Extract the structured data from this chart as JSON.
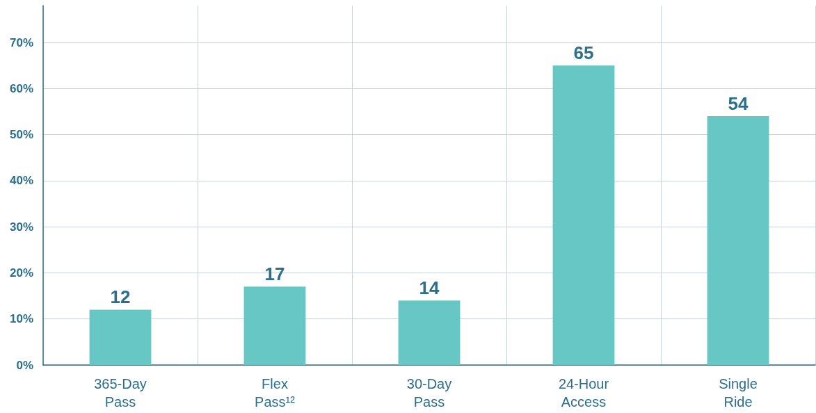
{
  "chart_data": {
    "type": "bar",
    "categories": [
      "365-Day Pass",
      "Flex Pass¹²",
      "30-Day Pass",
      "24-Hour Access",
      "Single Ride"
    ],
    "values": [
      12,
      17,
      14,
      65,
      54
    ],
    "color": "#66c7c5",
    "data_labels": true,
    "ylim": [
      0,
      78
    ],
    "yticks": [
      {
        "value": 0,
        "label": "0%"
      },
      {
        "value": 10,
        "label": "10%"
      },
      {
        "value": 20,
        "label": "20%"
      },
      {
        "value": 30,
        "label": "30%"
      },
      {
        "value": 40,
        "label": "40%"
      },
      {
        "value": 50,
        "label": "50%"
      },
      {
        "value": 60,
        "label": "60%"
      },
      {
        "value": 70,
        "label": "70%"
      }
    ],
    "grid": true
  }
}
